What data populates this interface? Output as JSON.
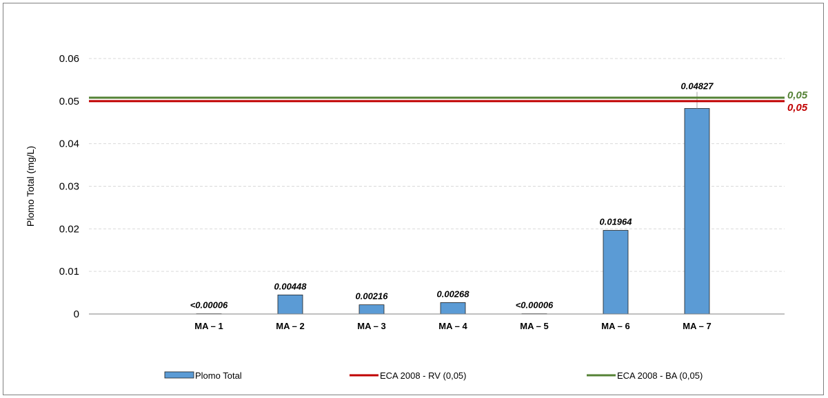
{
  "chart_data": {
    "type": "bar",
    "ylabel": "Plomo Total (mg/L)",
    "ylim": [
      0,
      0.06
    ],
    "yticks": [
      "0",
      "0.01",
      "0.02",
      "0.03",
      "0.04",
      "0.05",
      "0.06"
    ],
    "grid": true,
    "categories": [
      "MA – 1",
      "MA – 2",
      "MA – 3",
      "MA – 4",
      "MA – 5",
      "MA – 6",
      "MA – 7"
    ],
    "series": [
      {
        "name": "Plomo Total",
        "color": "#5b9bd5",
        "values": [
          6e-05,
          0.00448,
          0.00216,
          0.00268,
          6e-05,
          0.01964,
          0.04827
        ],
        "labels": [
          "<0.00006",
          "0.00448",
          "0.00216",
          "0.00268",
          "<0.00006",
          "0.01964",
          "0.04827"
        ]
      }
    ],
    "reference_lines": [
      {
        "name": "ECA 2008 - RV (0,05)",
        "value": 0.05,
        "label": "0,05",
        "color": "#c00000"
      },
      {
        "name": "ECA 2008 - BA (0,05)",
        "value": 0.05,
        "label": "0,05",
        "color": "#548235"
      }
    ],
    "legend_position": "bottom"
  }
}
